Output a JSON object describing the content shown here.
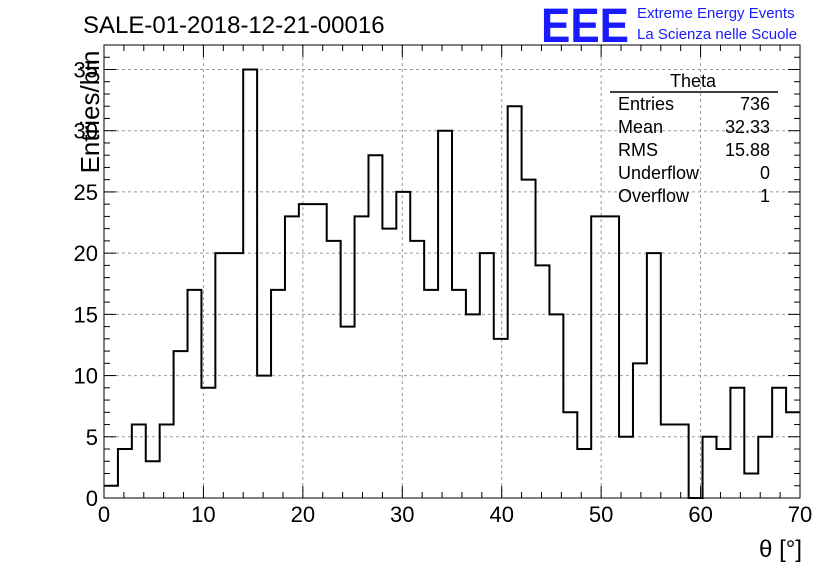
{
  "header": {
    "title": "SALE-01-2018-12-21-00016",
    "logo_text": "EEE",
    "logo_line1": "Extreme Energy Events",
    "logo_line2": "La Scienza nelle Scuole",
    "logo_color": "#1a1aff"
  },
  "stats": {
    "name": "Theta",
    "rows": [
      {
        "label": "Entries",
        "value": "736"
      },
      {
        "label": "Mean",
        "value": "32.33"
      },
      {
        "label": "RMS",
        "value": "15.88"
      },
      {
        "label": "Underflow",
        "value": "0"
      },
      {
        "label": "Overflow",
        "value": "1"
      }
    ]
  },
  "chart_data": {
    "type": "bar",
    "title": "SALE-01-2018-12-21-00016",
    "xlabel": "θ [°]",
    "ylabel": "Entries/bin",
    "xlim": [
      0,
      70
    ],
    "ylim": [
      0,
      37
    ],
    "bin_width": 1.4,
    "x_ticks": [
      0,
      10,
      20,
      30,
      40,
      50,
      60,
      70
    ],
    "y_ticks": [
      0,
      5,
      10,
      15,
      20,
      25,
      30,
      35
    ],
    "grid": true,
    "values": [
      1,
      4,
      6,
      3,
      6,
      12,
      17,
      9,
      20,
      20,
      35,
      10,
      17,
      23,
      24,
      24,
      21,
      14,
      23,
      28,
      22,
      25,
      21,
      17,
      30,
      17,
      15,
      20,
      13,
      32,
      26,
      19,
      15,
      7,
      4,
      23,
      23,
      5,
      11,
      20,
      6,
      6,
      0,
      5,
      4,
      9,
      2,
      5,
      9,
      7
    ],
    "line_color": "#000000"
  }
}
